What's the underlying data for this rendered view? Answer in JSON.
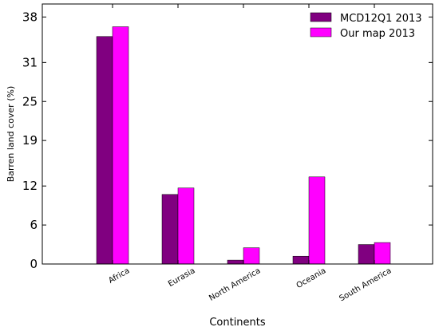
{
  "chart_data": {
    "type": "bar",
    "title": "",
    "xlabel": "Continents",
    "ylabel": "Barren land cover (%)",
    "categories": [
      "Africa",
      "Eurasia",
      "North America",
      "Oceania",
      "South America"
    ],
    "series": [
      {
        "name": "MCD12Q1 2013",
        "color": "#800080",
        "values": [
          35.0,
          10.7,
          0.6,
          1.2,
          3.0
        ]
      },
      {
        "name": "Our map 2013",
        "color": "#ff00ff",
        "values": [
          36.5,
          11.7,
          2.5,
          13.4,
          3.3
        ]
      }
    ],
    "yticks": [
      0,
      6,
      12,
      19,
      25,
      31,
      38
    ],
    "ylim": [
      0,
      40
    ],
    "legend_position": "top-right",
    "grid": false
  }
}
